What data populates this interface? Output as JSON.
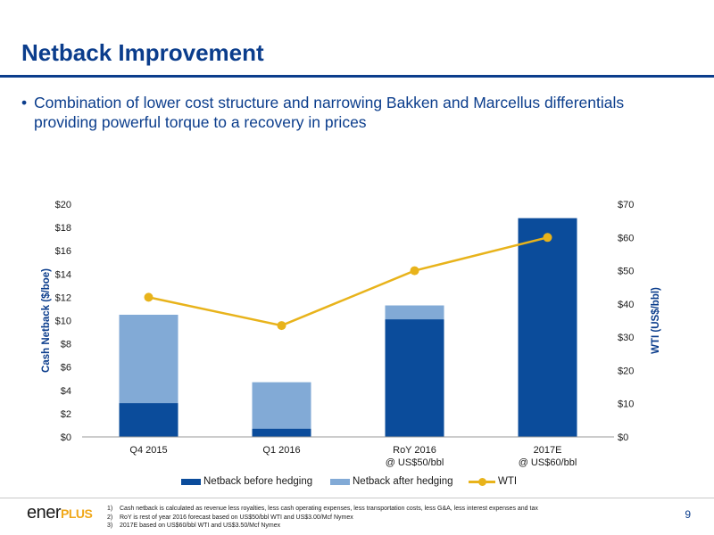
{
  "slide": {
    "title": "Netback Improvement",
    "bullet": "Combination of lower cost structure and narrowing Bakken and Marcellus differentials providing powerful torque to a recovery in prices",
    "page_number": "9",
    "logo": {
      "ener": "ener",
      "plus": "PLUS"
    },
    "footnotes": [
      {
        "num": "1)",
        "text": "Cash netback is calculated as revenue less royalties, less cash operating expenses, less transportation costs, less G&A, less interest expenses and tax"
      },
      {
        "num": "2)",
        "text": "RoY is rest of year 2016 forecast based on US$50/bbl WTI and US$3.00/Mcf Nymex"
      },
      {
        "num": "3)",
        "text": "2017E based on US$60/bbl WTI and US$3.50/Mcf Nymex"
      }
    ]
  },
  "colors": {
    "title": "#0b3d8c",
    "netback_before": "#0b4c9b",
    "netback_after": "#82aad6",
    "wti": "#e8b31b"
  },
  "chart_data": {
    "type": "bar",
    "categories": [
      [
        "Q4 2015"
      ],
      [
        "Q1 2016"
      ],
      [
        "RoY 2016",
        "@ US$50/bbl"
      ],
      [
        "2017E",
        "@ US$60/bbl"
      ]
    ],
    "series": [
      {
        "name": "Netback before hedging",
        "type": "bar",
        "axis": "left",
        "values": [
          2.9,
          0.7,
          10.1,
          18.8
        ]
      },
      {
        "name": "Netback after hedging",
        "type": "bar",
        "axis": "left",
        "values": [
          10.5,
          4.7,
          11.3,
          null
        ]
      },
      {
        "name": "WTI",
        "type": "line",
        "axis": "right",
        "values": [
          42,
          33.5,
          50,
          60
        ]
      }
    ],
    "ylabel": "Cash Netback ($/boe)",
    "ylabel_right": "WTI (US$/bbl)",
    "ylim": [
      0,
      20
    ],
    "ylim_right": [
      0,
      70
    ],
    "yticks": [
      "$0",
      "$2",
      "$4",
      "$6",
      "$8",
      "$10",
      "$12",
      "$14",
      "$16",
      "$18",
      "$20"
    ],
    "yticks_right": [
      "$0",
      "$10",
      "$20",
      "$30",
      "$40",
      "$50",
      "$60",
      "$70"
    ],
    "grid": false,
    "legend_position": "bottom"
  }
}
